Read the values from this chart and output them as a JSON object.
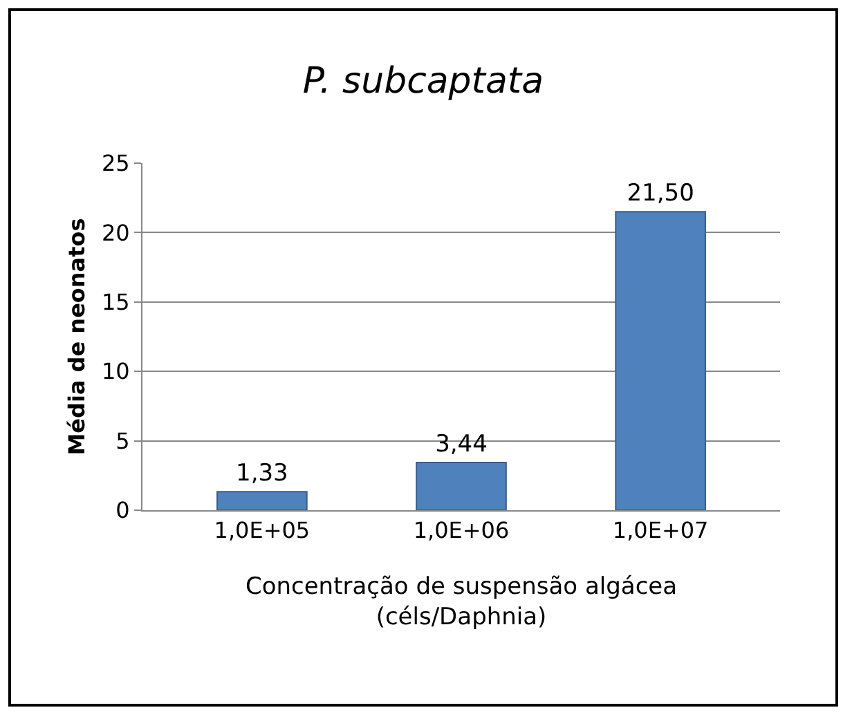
{
  "chart_data": {
    "type": "bar",
    "title": "P. subcaptata",
    "xlabel": "Concentração de suspensão algácea\n(céls/Daphnia)",
    "ylabel": "Média de neonatos",
    "categories": [
      "1,0E+05",
      "1,0E+06",
      "1,0E+07"
    ],
    "values": [
      1.33,
      3.44,
      21.5
    ],
    "value_labels": [
      "1,33",
      "3,44",
      "21,50"
    ],
    "color": "#4f81bd",
    "ylim": [
      0,
      25
    ],
    "yticks": [
      0,
      5,
      10,
      15,
      20,
      25
    ],
    "grid": "y"
  }
}
